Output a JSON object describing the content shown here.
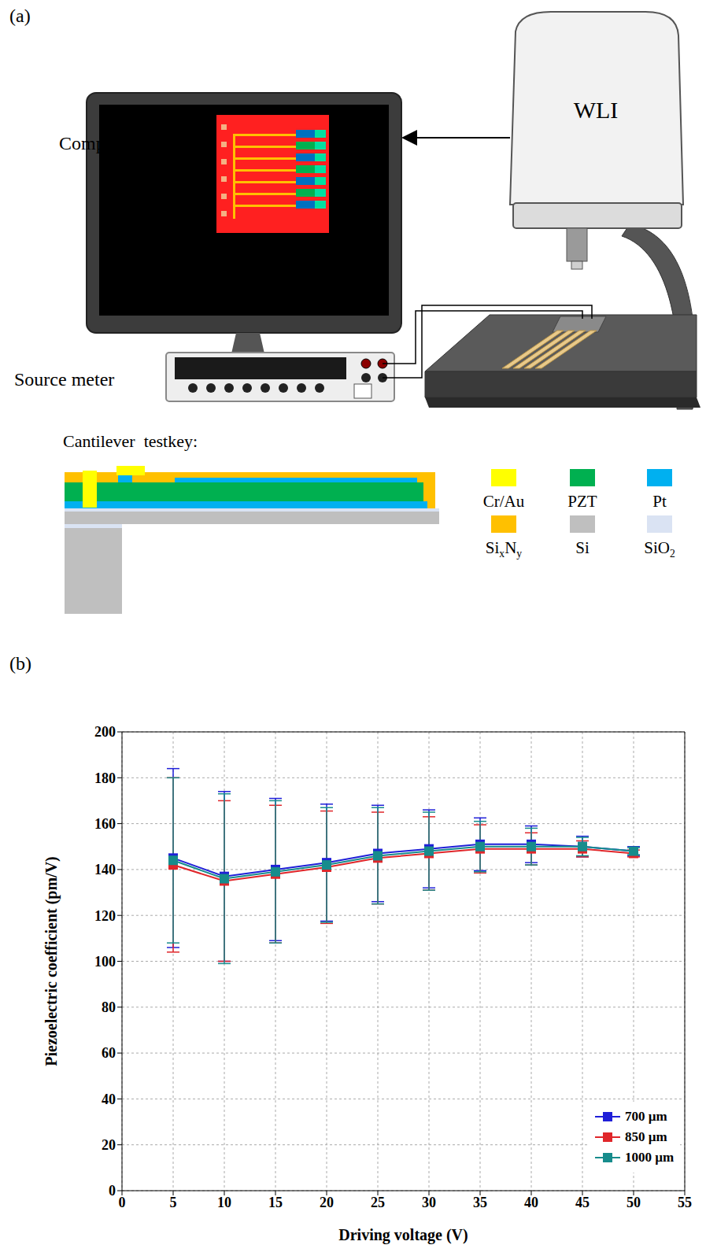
{
  "figure_a": {
    "panel_label": "(a)",
    "computer": "Computer",
    "microscope": "WLI",
    "source_meter": "Source meter",
    "cross_section_title": "Cantilever  testkey:",
    "materials": [
      {
        "label": [
          {
            "text": "Cr/Au"
          }
        ],
        "color": "#ffff00"
      },
      {
        "label": [
          {
            "text": "PZT"
          }
        ],
        "color": "#00b050"
      },
      {
        "label": [
          {
            "text": "Pt"
          }
        ],
        "color": "#00b0f0"
      },
      {
        "label": [
          {
            "text": "Si"
          },
          {
            "text": "x",
            "sub": true
          },
          {
            "text": "N"
          },
          {
            "text": "y",
            "sub": true
          }
        ],
        "color": "#ffc000"
      },
      {
        "label": [
          {
            "text": "Si"
          }
        ],
        "color": "#bfbfbf"
      },
      {
        "label": [
          {
            "text": "SiO"
          },
          {
            "text": "2",
            "sub": true
          }
        ],
        "color": "#dae3f3"
      }
    ]
  },
  "chart_data": {
    "type": "line",
    "panel_label": "(b)",
    "x_label": "Driving voltage (V)",
    "y_label": "Piezoelectric coefficient (pm/V)",
    "x": [
      5,
      10,
      15,
      20,
      25,
      30,
      35,
      40,
      45,
      50
    ],
    "xlim": [
      0,
      55
    ],
    "xticks": [
      0,
      5,
      10,
      15,
      20,
      25,
      30,
      35,
      40,
      45,
      50,
      55
    ],
    "ylim": [
      0,
      200
    ],
    "yticks": [
      0,
      20,
      40,
      60,
      80,
      100,
      120,
      140,
      160,
      180,
      200
    ],
    "grid": true,
    "legend": "lower right",
    "marker": "square",
    "series": [
      {
        "name": "700 µm",
        "color": "#1f1fd8",
        "values": [
          145,
          137,
          140,
          143,
          147,
          149,
          151,
          151,
          150,
          148
        ],
        "errors": [
          39,
          37,
          31,
          25.5,
          21,
          17,
          11.5,
          8,
          4.5,
          2
        ]
      },
      {
        "name": "850 µm",
        "color": "#e0262a",
        "values": [
          142,
          135,
          138,
          141,
          145,
          147,
          149,
          149,
          149,
          147
        ],
        "errors": [
          38,
          35,
          30,
          24.5,
          20,
          16,
          10.5,
          7,
          3.5,
          1.5
        ]
      },
      {
        "name": "1000 µm",
        "color": "#178c8c",
        "values": [
          144,
          136,
          139,
          142,
          146,
          148,
          150,
          150,
          150,
          148
        ],
        "errors": [
          36,
          37,
          31,
          25,
          21,
          17,
          11,
          8,
          4,
          1.5
        ]
      }
    ]
  }
}
